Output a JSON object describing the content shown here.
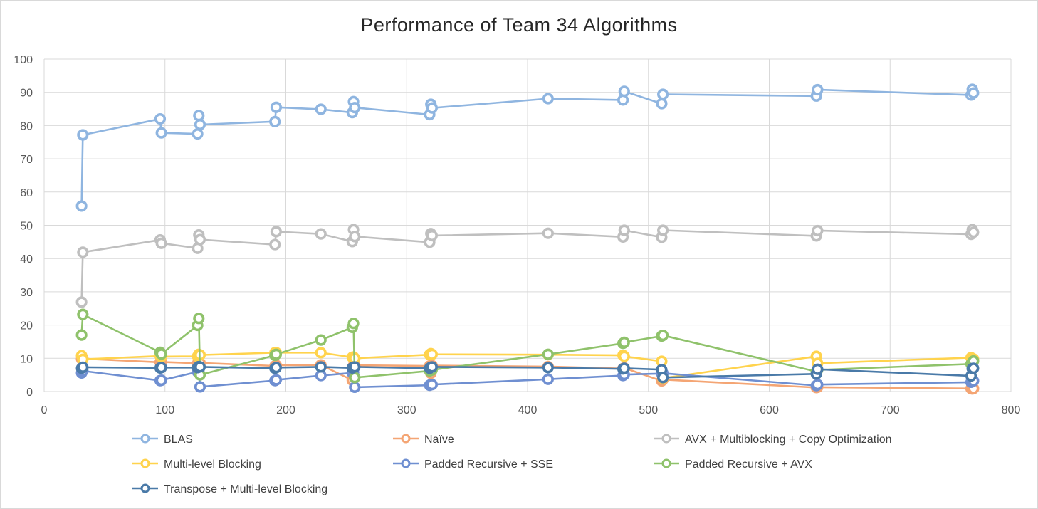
{
  "chart_data": {
    "type": "scatter",
    "title": "Performance of Team 34 Algorithms",
    "xlim": [
      0,
      800
    ],
    "ylim": [
      0,
      100
    ],
    "x_ticks": [
      0,
      100,
      200,
      300,
      400,
      500,
      600,
      700,
      800
    ],
    "y_ticks": [
      0,
      10,
      20,
      30,
      40,
      50,
      60,
      70,
      80,
      90,
      100
    ],
    "grid": true,
    "legend_position": "bottom",
    "series": [
      {
        "name": "BLAS",
        "color": "#8fb5e0",
        "x": [
          31,
          32,
          96,
          97,
          127,
          128,
          129,
          191,
          192,
          229,
          255,
          256,
          257,
          319,
          320,
          321,
          417,
          479,
          480,
          511,
          512,
          639,
          640,
          767,
          768,
          769
        ],
        "y": [
          55.8,
          77.2,
          82.0,
          77.8,
          77.5,
          83.0,
          80.3,
          81.2,
          85.5,
          84.9,
          83.9,
          87.2,
          85.4,
          83.3,
          86.4,
          85.3,
          88.1,
          87.7,
          90.3,
          86.6,
          89.4,
          88.9,
          90.8,
          89.2,
          90.9,
          89.8
        ]
      },
      {
        "name": "Naïve",
        "color": "#f4a574",
        "x": [
          31,
          32,
          96,
          97,
          127,
          128,
          129,
          191,
          192,
          229,
          255,
          256,
          257,
          319,
          320,
          321,
          417,
          479,
          480,
          511,
          512,
          639,
          640,
          767,
          768,
          769
        ],
        "y": [
          9.8,
          9.9,
          8.8,
          8.9,
          8.5,
          8.6,
          8.6,
          7.7,
          7.9,
          8.0,
          3.4,
          7.8,
          7.9,
          7.7,
          5.5,
          7.8,
          7.5,
          6.9,
          7.1,
          3.2,
          3.6,
          1.2,
          1.3,
          0.9,
          0.8,
          0.9
        ]
      },
      {
        "name": "AVX + Multiblocking  + Copy Optimization",
        "color": "#bfbfbf",
        "x": [
          31,
          32,
          96,
          97,
          127,
          128,
          129,
          191,
          192,
          229,
          255,
          256,
          257,
          319,
          320,
          321,
          417,
          479,
          480,
          511,
          512,
          639,
          640,
          767,
          768,
          769
        ],
        "y": [
          26.9,
          41.9,
          45.6,
          44.6,
          43.1,
          47.1,
          45.7,
          44.2,
          48.1,
          47.4,
          45.1,
          48.7,
          46.6,
          44.9,
          47.5,
          46.9,
          47.6,
          46.5,
          48.5,
          46.4,
          48.5,
          46.8,
          48.4,
          47.3,
          48.7,
          47.9
        ]
      },
      {
        "name": "Multi-level Blocking",
        "color": "#ffd34d",
        "x": [
          31,
          32,
          96,
          97,
          127,
          128,
          129,
          191,
          192,
          229,
          255,
          256,
          257,
          319,
          320,
          321,
          417,
          479,
          480,
          511,
          512,
          639,
          640,
          767,
          768,
          769
        ],
        "y": [
          10.8,
          9.7,
          10.7,
          10.5,
          10.6,
          11.2,
          11.0,
          11.7,
          11.7,
          11.7,
          10.3,
          10.4,
          10.0,
          11.1,
          11.4,
          11.2,
          11.1,
          10.9,
          10.6,
          9.1,
          4.0,
          10.6,
          8.5,
          10.2,
          9.9,
          9.8
        ]
      },
      {
        "name": "Padded Recursive + SSE",
        "color": "#6f8fd1",
        "x": [
          31,
          32,
          96,
          97,
          127,
          128,
          129,
          191,
          192,
          229,
          255,
          256,
          257,
          319,
          320,
          321,
          417,
          479,
          480,
          511,
          512,
          639,
          640,
          767,
          768,
          769
        ],
        "y": [
          5.6,
          6.2,
          3.3,
          3.4,
          5.9,
          6.3,
          1.4,
          3.3,
          3.5,
          4.8,
          5.6,
          5.7,
          1.3,
          1.9,
          2.1,
          2.1,
          3.7,
          4.8,
          5.1,
          5.4,
          5.5,
          1.8,
          2.1,
          2.8,
          3.1,
          3.2
        ]
      },
      {
        "name": "Padded Recursive + AVX",
        "color": "#8fc26b",
        "x": [
          31,
          32,
          96,
          97,
          127,
          128,
          129,
          191,
          192,
          229,
          255,
          256,
          257,
          319,
          320,
          321,
          417,
          479,
          480,
          511,
          512,
          639,
          640,
          767,
          768,
          769
        ],
        "y": [
          17.0,
          23.2,
          11.8,
          11.3,
          19.9,
          22.0,
          5.0,
          10.9,
          11.2,
          15.5,
          19.3,
          20.5,
          4.2,
          6.2,
          7.2,
          6.5,
          11.2,
          14.5,
          14.8,
          16.7,
          16.9,
          6.0,
          6.5,
          8.3,
          8.7,
          9.2
        ]
      },
      {
        "name": "Transpose + Multi-level Blocking",
        "color": "#4a7aa8",
        "x": [
          31,
          32,
          96,
          97,
          127,
          128,
          129,
          191,
          192,
          229,
          255,
          256,
          257,
          319,
          320,
          321,
          417,
          479,
          480,
          511,
          512,
          639,
          640,
          767,
          768,
          769
        ],
        "y": [
          7.0,
          7.3,
          7.1,
          7.2,
          7.2,
          7.5,
          7.4,
          7.0,
          7.2,
          7.4,
          7.1,
          7.3,
          7.4,
          7.0,
          7.3,
          7.4,
          7.2,
          6.8,
          7.0,
          6.6,
          4.2,
          5.3,
          6.7,
          4.7,
          6.9,
          7.0
        ]
      }
    ]
  }
}
